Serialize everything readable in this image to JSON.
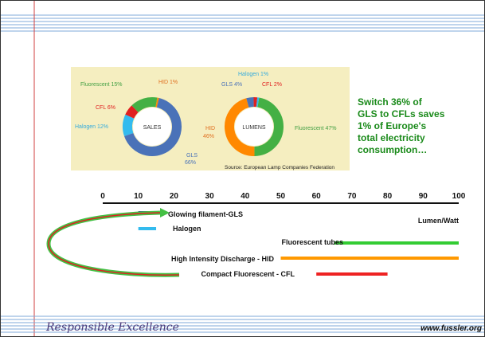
{
  "donut_sales": {
    "center_label": "SALES",
    "labels": {
      "fluorescent": "Fluorescent 15%",
      "hid": "HID 1%",
      "cfl": "CFL 6%",
      "halogen": "Halogen 12%",
      "gls": "GLS",
      "gls_pct": "66%"
    },
    "values": {
      "gls": 66,
      "halogen": 12,
      "cfl": 6,
      "fluorescent": 15,
      "hid": 1
    }
  },
  "donut_lumens": {
    "center_label": "LUMENS",
    "labels": {
      "halogen": "Halogen 1%",
      "gls": "GLS 4%",
      "cfl": "CFL 2%",
      "hid": "HID",
      "hid_pct": "46%",
      "fluorescent": "Fluorescent 47%"
    },
    "values": {
      "fluorescent": 47,
      "hid": 46,
      "gls": 4,
      "cfl": 2,
      "halogen": 1
    }
  },
  "source": "Source: European Lamp Companies Federation",
  "callout": [
    "Switch 36% of",
    "GLS to CFLs saves",
    "1% of Europe's",
    "total electricity",
    "consumption…"
  ],
  "axis": {
    "ticks": [
      "0",
      "10",
      "20",
      "30",
      "40",
      "50",
      "60",
      "70",
      "80",
      "90",
      "100"
    ],
    "unit": "Lumen/Watt"
  },
  "efficacy_ranges": [
    {
      "label": "Glowing filament-GLS",
      "start": 10,
      "end": 15,
      "color": "#3333aa"
    },
    {
      "label": "Halogen",
      "start": 10,
      "end": 15,
      "color": "#33bbee"
    },
    {
      "label": "Fluorescent tubes",
      "start": 65,
      "end": 100,
      "color": "#33cc33"
    },
    {
      "label": "High Intensity Discharge - HID",
      "start": 50,
      "end": 100,
      "color": "#ff9900"
    },
    {
      "label": "Compact Fluorescent - CFL",
      "start": 60,
      "end": 80,
      "color": "#ee2222"
    }
  ],
  "footer": {
    "brand": "Responsible Excellence",
    "url": "www.fussler.org"
  },
  "colors": {
    "gls": "#4a72b8",
    "halogen": "#33bbee",
    "cfl": "#e02020",
    "fluorescent": "#44b044",
    "hid": "#ff8800",
    "callout_text": "#1a8a1a",
    "stripe": "#7fa8d8",
    "chart_bg": "#f5eec0"
  }
}
